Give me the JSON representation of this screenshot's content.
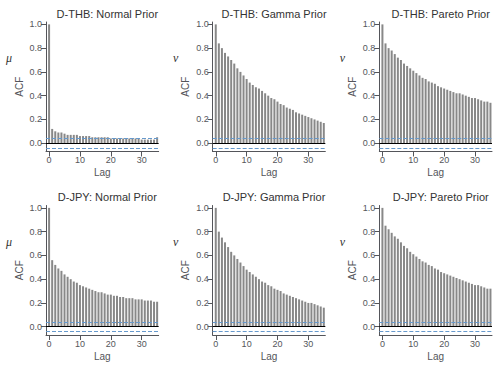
{
  "chart_data": [
    {
      "type": "bar",
      "title": "D-THB: Normal Prior",
      "xlabel": "Lag",
      "ylabel": "ACF",
      "annotation": "μ",
      "color": "#888888",
      "grid": false,
      "x": [
        0,
        1,
        2,
        3,
        4,
        5,
        6,
        7,
        8,
        9,
        10,
        11,
        12,
        13,
        14,
        15,
        16,
        17,
        18,
        19,
        20,
        21,
        22,
        23,
        24,
        25,
        26,
        27,
        28,
        29,
        30,
        31,
        32,
        33,
        34,
        35
      ],
      "values": [
        1.0,
        0.12,
        0.1,
        0.09,
        0.09,
        0.08,
        0.07,
        0.07,
        0.07,
        0.07,
        0.06,
        0.06,
        0.06,
        0.06,
        0.05,
        0.05,
        0.05,
        0.05,
        0.05,
        0.05,
        0.04,
        0.04,
        0.04,
        0.04,
        0.04,
        0.04,
        0.04,
        0.04,
        0.04,
        0.04,
        0.03,
        0.03,
        0.03,
        0.03,
        0.03,
        0.05
      ],
      "hlines": [
        {
          "y": 0,
          "color": "#000000",
          "line_style": "solid"
        },
        {
          "y": 0.04,
          "color": "#6699CC",
          "line_style": "dashed"
        },
        {
          "y": -0.04,
          "color": "#6699CC",
          "line_style": "dashed"
        }
      ],
      "xlim": [
        -1.0,
        35.5
      ],
      "xticks": [
        0,
        10,
        20,
        30
      ],
      "ylim": [
        -0.07,
        1.02
      ],
      "yticks": [
        {
          "value": 0.0,
          "label": "0.0"
        },
        0.2,
        0.4,
        0.6,
        0.8,
        {
          "value": 1.0,
          "label": "1.0"
        }
      ]
    },
    {
      "type": "bar",
      "title": "D-THB: Gamma Prior",
      "xlabel": "Lag",
      "ylabel": "ACF",
      "annotation": "ν",
      "color": "#888888",
      "grid": false,
      "x": [
        0,
        1,
        2,
        3,
        4,
        5,
        6,
        7,
        8,
        9,
        10,
        11,
        12,
        13,
        14,
        15,
        16,
        17,
        18,
        19,
        20,
        21,
        22,
        23,
        24,
        25,
        26,
        27,
        28,
        29,
        30,
        31,
        32,
        33,
        34,
        35
      ],
      "values": [
        1.0,
        0.84,
        0.8,
        0.76,
        0.73,
        0.7,
        0.67,
        0.63,
        0.6,
        0.57,
        0.54,
        0.51,
        0.49,
        0.47,
        0.46,
        0.44,
        0.42,
        0.4,
        0.38,
        0.37,
        0.35,
        0.33,
        0.32,
        0.3,
        0.29,
        0.28,
        0.26,
        0.25,
        0.24,
        0.23,
        0.22,
        0.21,
        0.2,
        0.19,
        0.18,
        0.17
      ],
      "hlines": [
        {
          "y": 0,
          "color": "#000000",
          "line_style": "solid"
        },
        {
          "y": 0.04,
          "color": "#6699CC",
          "line_style": "dashed"
        },
        {
          "y": -0.04,
          "color": "#6699CC",
          "line_style": "dashed"
        }
      ],
      "xlim": [
        -1.0,
        35.5
      ],
      "xticks": [
        0,
        10,
        20,
        30
      ],
      "ylim": [
        -0.07,
        1.02
      ],
      "yticks": [
        {
          "value": 0.0,
          "label": "0.0"
        },
        0.2,
        0.4,
        0.6,
        0.8,
        {
          "value": 1.0,
          "label": "1.0"
        }
      ]
    },
    {
      "type": "bar",
      "title": "D-THB: Pareto Prior",
      "xlabel": "Lag",
      "ylabel": "ACF",
      "annotation": "ν",
      "color": "#888888",
      "grid": false,
      "x": [
        0,
        1,
        2,
        3,
        4,
        5,
        6,
        7,
        8,
        9,
        10,
        11,
        12,
        13,
        14,
        15,
        16,
        17,
        18,
        19,
        20,
        21,
        22,
        23,
        24,
        25,
        26,
        27,
        28,
        29,
        30,
        31,
        32,
        33,
        34,
        35
      ],
      "values": [
        1.0,
        0.84,
        0.8,
        0.78,
        0.75,
        0.72,
        0.7,
        0.67,
        0.65,
        0.63,
        0.61,
        0.59,
        0.57,
        0.55,
        0.54,
        0.52,
        0.51,
        0.5,
        0.48,
        0.47,
        0.46,
        0.45,
        0.44,
        0.43,
        0.42,
        0.42,
        0.41,
        0.4,
        0.39,
        0.38,
        0.38,
        0.37,
        0.36,
        0.35,
        0.35,
        0.34
      ],
      "hlines": [
        {
          "y": 0,
          "color": "#000000",
          "line_style": "solid"
        },
        {
          "y": 0.04,
          "color": "#6699CC",
          "line_style": "dashed"
        },
        {
          "y": -0.04,
          "color": "#6699CC",
          "line_style": "dashed"
        }
      ],
      "xlim": [
        -1.0,
        35.5
      ],
      "xticks": [
        0,
        10,
        20,
        30
      ],
      "ylim": [
        -0.07,
        1.02
      ],
      "yticks": [
        {
          "value": 0.0,
          "label": "0.0"
        },
        0.2,
        0.4,
        0.6,
        0.8,
        {
          "value": 1.0,
          "label": "1.0"
        }
      ]
    },
    {
      "type": "bar",
      "title": "D-JPY: Normal Prior",
      "xlabel": "Lag",
      "ylabel": "ACF",
      "annotation": "μ",
      "color": "#888888",
      "grid": false,
      "x": [
        0,
        1,
        2,
        3,
        4,
        5,
        6,
        7,
        8,
        9,
        10,
        11,
        12,
        13,
        14,
        15,
        16,
        17,
        18,
        19,
        20,
        21,
        22,
        23,
        24,
        25,
        26,
        27,
        28,
        29,
        30,
        31,
        32,
        33,
        34,
        35
      ],
      "values": [
        1.0,
        0.56,
        0.52,
        0.49,
        0.47,
        0.44,
        0.42,
        0.4,
        0.38,
        0.37,
        0.35,
        0.34,
        0.33,
        0.32,
        0.31,
        0.3,
        0.29,
        0.29,
        0.28,
        0.27,
        0.27,
        0.26,
        0.26,
        0.25,
        0.25,
        0.24,
        0.24,
        0.24,
        0.23,
        0.23,
        0.23,
        0.22,
        0.22,
        0.22,
        0.21,
        0.21
      ],
      "hlines": [
        {
          "y": 0,
          "color": "#000000",
          "line_style": "solid"
        },
        {
          "y": 0.04,
          "color": "#6699CC",
          "line_style": "dashed"
        },
        {
          "y": -0.04,
          "color": "#6699CC",
          "line_style": "dashed"
        }
      ],
      "xlim": [
        -1.0,
        35.5
      ],
      "xticks": [
        0,
        10,
        20,
        30
      ],
      "ylim": [
        -0.07,
        1.02
      ],
      "yticks": [
        {
          "value": 0.0,
          "label": "0.0"
        },
        0.2,
        0.4,
        0.6,
        0.8,
        {
          "value": 1.0,
          "label": "1.0"
        }
      ]
    },
    {
      "type": "bar",
      "title": "D-JPY: Gamma Prior",
      "xlabel": "Lag",
      "ylabel": "ACF",
      "annotation": "ν",
      "color": "#888888",
      "grid": false,
      "x": [
        0,
        1,
        2,
        3,
        4,
        5,
        6,
        7,
        8,
        9,
        10,
        11,
        12,
        13,
        14,
        15,
        16,
        17,
        18,
        19,
        20,
        21,
        22,
        23,
        24,
        25,
        26,
        27,
        28,
        29,
        30,
        31,
        32,
        33,
        34,
        35
      ],
      "values": [
        1.0,
        0.8,
        0.75,
        0.71,
        0.67,
        0.63,
        0.6,
        0.57,
        0.54,
        0.51,
        0.48,
        0.46,
        0.44,
        0.42,
        0.4,
        0.38,
        0.37,
        0.35,
        0.34,
        0.32,
        0.31,
        0.3,
        0.28,
        0.27,
        0.26,
        0.25,
        0.24,
        0.23,
        0.22,
        0.21,
        0.2,
        0.2,
        0.19,
        0.18,
        0.17,
        0.16
      ],
      "hlines": [
        {
          "y": 0,
          "color": "#000000",
          "line_style": "solid"
        },
        {
          "y": 0.04,
          "color": "#6699CC",
          "line_style": "dashed"
        },
        {
          "y": -0.04,
          "color": "#6699CC",
          "line_style": "dashed"
        }
      ],
      "xlim": [
        -1.0,
        35.5
      ],
      "xticks": [
        0,
        10,
        20,
        30
      ],
      "ylim": [
        -0.07,
        1.02
      ],
      "yticks": [
        {
          "value": 0.0,
          "label": "0.0"
        },
        0.2,
        0.4,
        0.6,
        0.8,
        {
          "value": 1.0,
          "label": "1.0"
        }
      ]
    },
    {
      "type": "bar",
      "title": "D-JPY: Pareto Prior",
      "xlabel": "Lag",
      "ylabel": "ACF",
      "annotation": "ν",
      "color": "#888888",
      "grid": false,
      "x": [
        0,
        1,
        2,
        3,
        4,
        5,
        6,
        7,
        8,
        9,
        10,
        11,
        12,
        13,
        14,
        15,
        16,
        17,
        18,
        19,
        20,
        21,
        22,
        23,
        24,
        25,
        26,
        27,
        28,
        29,
        30,
        31,
        32,
        33,
        34,
        35
      ],
      "values": [
        1.0,
        0.85,
        0.82,
        0.79,
        0.76,
        0.74,
        0.71,
        0.68,
        0.66,
        0.63,
        0.61,
        0.59,
        0.57,
        0.55,
        0.54,
        0.52,
        0.51,
        0.49,
        0.48,
        0.46,
        0.45,
        0.44,
        0.43,
        0.42,
        0.41,
        0.4,
        0.39,
        0.38,
        0.37,
        0.36,
        0.35,
        0.35,
        0.34,
        0.33,
        0.32,
        0.32
      ],
      "hlines": [
        {
          "y": 0,
          "color": "#000000",
          "line_style": "solid"
        },
        {
          "y": 0.04,
          "color": "#6699CC",
          "line_style": "dashed"
        },
        {
          "y": -0.04,
          "color": "#6699CC",
          "line_style": "dashed"
        }
      ],
      "xlim": [
        -1.0,
        35.5
      ],
      "xticks": [
        0,
        10,
        20,
        30
      ],
      "ylim": [
        -0.07,
        1.02
      ],
      "yticks": [
        {
          "value": 0.0,
          "label": "0.0"
        },
        0.2,
        0.4,
        0.6,
        0.8,
        {
          "value": 1.0,
          "label": "1.0"
        }
      ]
    }
  ]
}
